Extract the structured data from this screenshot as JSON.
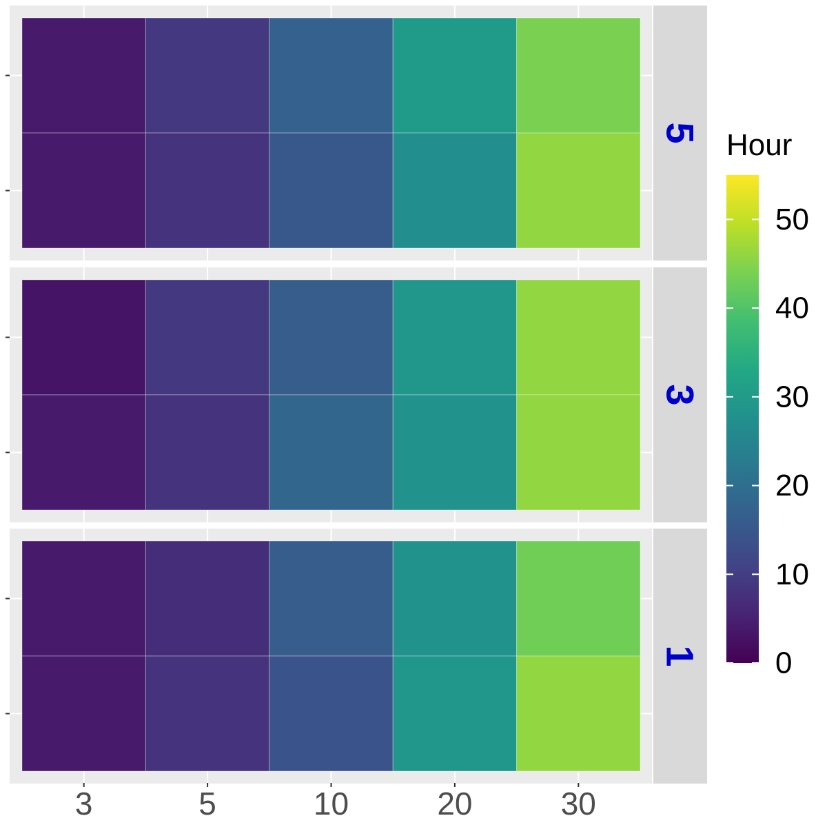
{
  "chart_data": {
    "type": "heatmap",
    "x_categories": [
      "3",
      "5",
      "10",
      "20",
      "30"
    ],
    "y_categories": [
      "",
      ""
    ],
    "facets": [
      {
        "label": "5",
        "values": [
          [
            4,
            9,
            17,
            30,
            44
          ],
          [
            4,
            8,
            15,
            27,
            46
          ]
        ]
      },
      {
        "label": "3",
        "values": [
          [
            3,
            9,
            16,
            29,
            46
          ],
          [
            4,
            8,
            18,
            28,
            46
          ]
        ]
      },
      {
        "label": "1",
        "values": [
          [
            4,
            7,
            16,
            28,
            43
          ],
          [
            4,
            8,
            14,
            29,
            46
          ]
        ]
      }
    ],
    "colorbar": {
      "title": "Hour",
      "min": 0,
      "max": 55,
      "ticks": [
        0,
        10,
        20,
        30,
        40,
        50
      ],
      "colormap": "viridis"
    },
    "xlabel": "",
    "ylabel": "",
    "grid": true,
    "legend_position": "right",
    "colors": {
      "panel_background": "#EBEBEB",
      "strip_background": "#D9D9D9",
      "strip_text": "#0000CC",
      "gridline": "#FFFFFF",
      "tick_label": "#4D4D4D"
    }
  }
}
